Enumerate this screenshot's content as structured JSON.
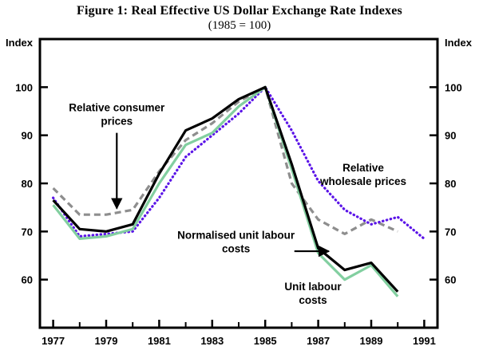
{
  "chart_data": {
    "type": "line",
    "title": "Figure 1: Real Effective US Dollar Exchange Rate Indexes",
    "subtitle": "(1985 = 100)",
    "ylabel_left": "Index",
    "ylabel_right": "Index",
    "xlim": [
      1976.5,
      1991.5
    ],
    "ylim": [
      50,
      110
    ],
    "yticks": [
      60,
      70,
      80,
      90,
      100
    ],
    "xticks": [
      1977,
      1979,
      1981,
      1983,
      1985,
      1987,
      1989,
      1991
    ],
    "minor_xticks": [
      1978,
      1980,
      1982,
      1984,
      1986,
      1988,
      1990
    ],
    "grid": false,
    "legend": "annotated-inline",
    "x": [
      1977,
      1978,
      1979,
      1980,
      1981,
      1982,
      1983,
      1984,
      1985,
      1986,
      1987,
      1988,
      1989,
      1990
    ],
    "series": [
      {
        "name": "Relative consumer prices",
        "style": "dashed",
        "color": "#8e8e8e",
        "values": [
          79,
          73.5,
          73.5,
          74.5,
          82.5,
          89,
          92.5,
          97,
          100,
          80,
          72.5,
          69.5,
          72.5,
          70
        ]
      },
      {
        "name": "Relative wholesale prices",
        "style": "dotted",
        "color": "#5b14e8",
        "x": [
          1977,
          1978,
          1979,
          1980,
          1981,
          1982,
          1983,
          1984,
          1985,
          1986,
          1987,
          1988,
          1989,
          1990,
          1991
        ],
        "values": [
          77,
          69,
          69.5,
          70,
          77,
          85.5,
          90,
          94.5,
          100,
          91,
          80.5,
          74.5,
          71.5,
          73,
          68.5
        ]
      },
      {
        "name": "Unit labour costs",
        "style": "solid",
        "color": "#82cfa0",
        "values": [
          75.5,
          68.5,
          69,
          70.5,
          80,
          88,
          90.5,
          96,
          100,
          83,
          65.5,
          60,
          63,
          56.5
        ]
      },
      {
        "name": "Normalised unit labour costs",
        "style": "solid",
        "color": "#000000",
        "values": [
          76.5,
          70.5,
          70,
          71.5,
          82,
          91,
          93.5,
          97.5,
          100,
          84,
          66.5,
          62,
          63.5,
          57.5
        ]
      }
    ],
    "annotations": [
      {
        "lines": [
          "Relative consumer",
          "prices"
        ],
        "x": 1979.4,
        "y": 95,
        "arrow": {
          "x1": 1979.4,
          "y1": 90.5,
          "x2": 1979.4,
          "y2": 74.8
        }
      },
      {
        "lines": [
          "Relative",
          "wholesale prices"
        ],
        "x": 1988.7,
        "y": 82.5
      },
      {
        "lines": [
          "Normalised unit labour",
          "costs"
        ],
        "x": 1983.9,
        "y": 68.5,
        "arrow": {
          "x1": 1986.1,
          "y1": 65.9,
          "x2": 1987.4,
          "y2": 65.9
        }
      },
      {
        "lines": [
          "Unit labour",
          "costs"
        ],
        "x": 1986.8,
        "y": 57.8
      }
    ]
  }
}
